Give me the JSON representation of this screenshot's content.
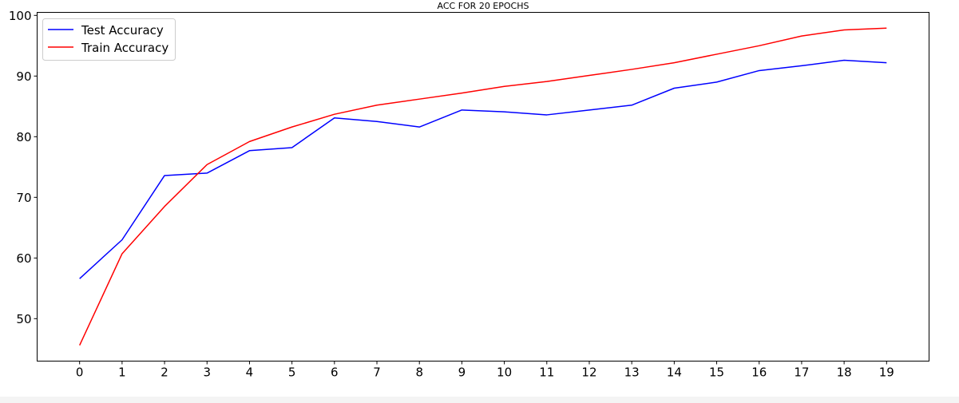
{
  "chart_data": {
    "type": "line",
    "title": "ACC FOR 20 EPOCHS",
    "xlabel": "",
    "ylabel": "",
    "x": [
      0,
      1,
      2,
      3,
      4,
      5,
      6,
      7,
      8,
      9,
      10,
      11,
      12,
      13,
      14,
      15,
      16,
      17,
      18,
      19
    ],
    "x_ticks": [
      "0",
      "1",
      "2",
      "3",
      "4",
      "5",
      "6",
      "7",
      "8",
      "9",
      "10",
      "11",
      "12",
      "13",
      "14",
      "15",
      "16",
      "17",
      "18",
      "19"
    ],
    "xlim": [
      -1,
      20
    ],
    "ylim": [
      43,
      100.5
    ],
    "y_ticks": [
      "50",
      "60",
      "70",
      "80",
      "90",
      "100"
    ],
    "grid": false,
    "legend_position": "upper-left",
    "series": [
      {
        "name": "Test Accuracy",
        "color": "#0000ff",
        "values": [
          56.6,
          63.0,
          73.6,
          74.0,
          77.7,
          78.2,
          83.1,
          82.5,
          81.6,
          84.4,
          84.1,
          83.6,
          84.4,
          85.2,
          88.0,
          89.0,
          90.9,
          91.7,
          92.6,
          92.2
        ]
      },
      {
        "name": "Train Accuracy",
        "color": "#ff0000",
        "values": [
          45.6,
          60.7,
          68.5,
          75.4,
          79.2,
          81.6,
          83.7,
          85.2,
          86.2,
          87.2,
          88.3,
          89.1,
          90.1,
          91.1,
          92.2,
          93.6,
          95.0,
          96.6,
          97.6,
          97.9
        ]
      }
    ]
  }
}
